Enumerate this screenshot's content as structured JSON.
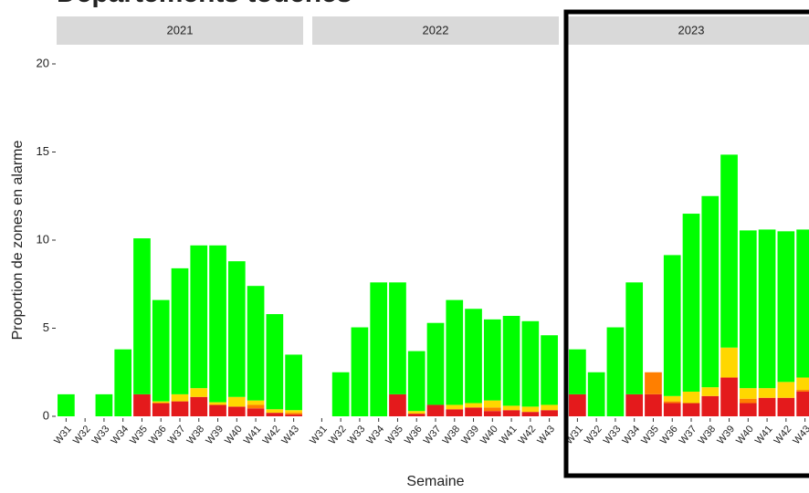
{
  "chart_data": {
    "type": "bar",
    "stacked": true,
    "title": "Départements touchés",
    "y_label": "Proportion de zones en alarme",
    "x_label": "Semaine",
    "categories": [
      "W31",
      "W32",
      "W33",
      "W34",
      "W35",
      "W36",
      "W37",
      "W38",
      "W39",
      "W40",
      "W41",
      "W42",
      "W43"
    ],
    "ylim": [
      0,
      20
    ],
    "yticks": [
      0,
      5,
      10,
      15,
      20
    ],
    "facets": [
      {
        "title": "2021",
        "series": [
          {
            "color": "#e41a1c",
            "values": [
              0,
              0,
              0,
              0,
              1.25,
              0.75,
              0.85,
              1.1,
              0.65,
              0.55,
              0.45,
              0.2,
              0.1
            ]
          },
          {
            "color": "#ff7f00",
            "values": [
              0,
              0,
              0,
              0,
              0,
              0,
              0,
              0,
              0,
              0,
              0.2,
              0,
              0.1
            ]
          },
          {
            "color": "#ffd700",
            "values": [
              0,
              0,
              0,
              0,
              0,
              0.1,
              0.4,
              0.5,
              0.15,
              0.55,
              0.25,
              0.2,
              0.15
            ]
          },
          {
            "color": "#00ff00",
            "values": [
              1.25,
              0,
              1.25,
              3.8,
              8.85,
              5.75,
              7.15,
              8.1,
              8.9,
              7.7,
              6.5,
              5.4,
              3.15
            ]
          }
        ]
      },
      {
        "title": "2022",
        "series": [
          {
            "color": "#e41a1c",
            "values": [
              0,
              0,
              0,
              0,
              1.25,
              0.15,
              0.65,
              0.4,
              0.5,
              0.3,
              0.35,
              0.25,
              0.35
            ]
          },
          {
            "color": "#ff7f00",
            "values": [
              0,
              0,
              0,
              0,
              0,
              0,
              0,
              0,
              0,
              0.2,
              0,
              0,
              0
            ]
          },
          {
            "color": "#ffd700",
            "values": [
              0,
              0,
              0,
              0,
              0,
              0.15,
              0,
              0.25,
              0.25,
              0.4,
              0.25,
              0.3,
              0.3
            ]
          },
          {
            "color": "#00ff00",
            "values": [
              0,
              2.5,
              5.05,
              7.6,
              6.35,
              3.4,
              4.65,
              5.95,
              5.35,
              4.6,
              5.1,
              4.85,
              3.95
            ]
          }
        ]
      },
      {
        "title": "2023",
        "series": [
          {
            "color": "#e41a1c",
            "values": [
              1.25,
              0,
              0,
              1.25,
              1.25,
              0.75,
              0.75,
              1.15,
              2.2,
              0.75,
              1.05,
              1.05,
              1.4
            ]
          },
          {
            "color": "#ff7f00",
            "values": [
              0,
              0,
              0,
              0,
              1.25,
              0.1,
              0,
              0,
              0,
              0.25,
              0,
              0,
              0.1
            ]
          },
          {
            "color": "#ffd700",
            "values": [
              0,
              0,
              0,
              0,
              0,
              0.3,
              0.65,
              0.5,
              1.7,
              0.6,
              0.55,
              0.9,
              0.7
            ]
          },
          {
            "color": "#00ff00",
            "values": [
              2.55,
              2.5,
              5.05,
              6.35,
              0,
              8.0,
              10.1,
              10.85,
              10.95,
              8.95,
              9.0,
              8.55,
              8.4
            ]
          }
        ]
      }
    ]
  }
}
